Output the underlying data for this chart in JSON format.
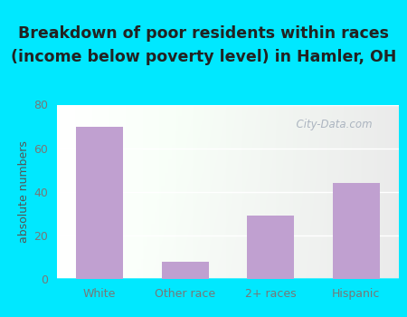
{
  "categories": [
    "White",
    "Other race",
    "2+ races",
    "Hispanic"
  ],
  "values": [
    70,
    8,
    29,
    44
  ],
  "bar_color": "#c0a0d0",
  "title_line1": "Breakdown of poor residents within races",
  "title_line2": "(income below poverty level) in Hamler, OH",
  "ylabel": "absolute numbers",
  "ylim": [
    0,
    80
  ],
  "yticks": [
    0,
    20,
    40,
    60,
    80
  ],
  "background_outer": "#00e8ff",
  "title_color": "#222222",
  "tick_color": "#777777",
  "ylabel_color": "#555555",
  "title_fontsize": 12.5,
  "axis_label_fontsize": 9,
  "tick_fontsize": 9,
  "bar_width": 0.55,
  "watermark": "  City-Data.com"
}
